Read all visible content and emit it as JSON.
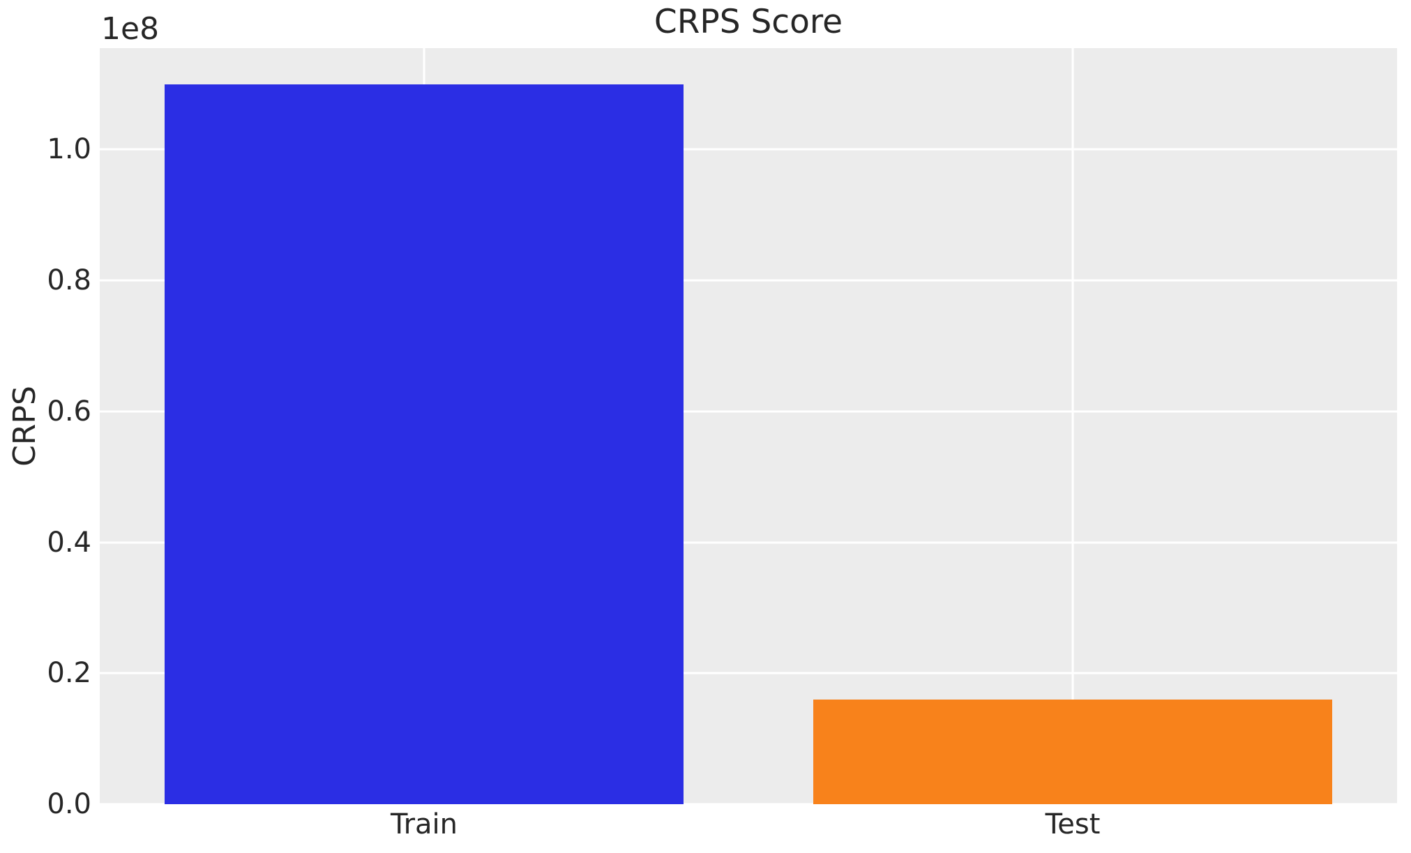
{
  "chart_data": {
    "type": "bar",
    "title": "CRPS Score",
    "xlabel": "",
    "ylabel": "CRPS",
    "y_offset_text": "1e8",
    "categories": [
      "Train",
      "Test"
    ],
    "values": [
      110000000,
      16000000
    ],
    "bar_colors": [
      "#2b2ee4",
      "#f8821b"
    ],
    "ylim": [
      0,
      115500000
    ],
    "yticks": [
      {
        "value": 0,
        "label": "0.0"
      },
      {
        "value": 20000000,
        "label": "0.2"
      },
      {
        "value": 40000000,
        "label": "0.4"
      },
      {
        "value": 60000000,
        "label": "0.6"
      },
      {
        "value": 80000000,
        "label": "0.8"
      },
      {
        "value": 100000000,
        "label": "1.0"
      }
    ],
    "grid": true,
    "legend": false,
    "plot_background_color": "#ececec",
    "grid_color": "#ffffff",
    "text_color": "#262626"
  }
}
